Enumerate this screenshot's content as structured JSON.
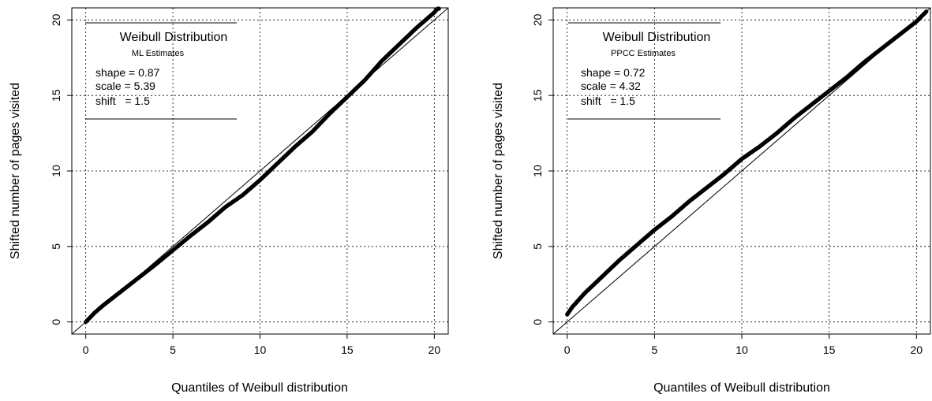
{
  "chart_data": [
    {
      "type": "scatter",
      "panel": "left",
      "xlabel": "Quantiles of Weibull distribution",
      "ylabel": "Shifted number of pages visited",
      "xlim": [
        -0.8,
        20.8
      ],
      "ylim": [
        -0.8,
        20.8
      ],
      "xticks": [
        0,
        5,
        10,
        15,
        20
      ],
      "yticks": [
        0,
        5,
        10,
        15,
        20
      ],
      "grid": true,
      "reference_line": "y = x",
      "legend_position": "top-left",
      "legend": {
        "title": "Weibull Distribution",
        "subtitle": "ML Estimates",
        "params": [
          {
            "name": "shape",
            "sep": " = ",
            "value": "0.87"
          },
          {
            "name": "scale",
            "sep": " = ",
            "value": "5.39"
          },
          {
            "name": "shift",
            "sep": "   = ",
            "value": "1.5"
          }
        ]
      },
      "series": [
        {
          "x": [
            0,
            0.5,
            1,
            2,
            3,
            4,
            5,
            6,
            7,
            8,
            9,
            10,
            11,
            12,
            13,
            14,
            15,
            16,
            17,
            18,
            19,
            20,
            20.3
          ],
          "y": [
            0,
            0.6,
            1.1,
            2.0,
            2.9,
            3.8,
            4.75,
            5.7,
            6.6,
            7.6,
            8.4,
            9.4,
            10.5,
            11.6,
            12.6,
            13.8,
            14.9,
            16.0,
            17.3,
            18.4,
            19.5,
            20.5,
            20.9
          ]
        }
      ]
    },
    {
      "type": "scatter",
      "panel": "right",
      "xlabel": "Quantiles of Weibull distribution",
      "ylabel": "Shifted number of pages visited",
      "xlim": [
        -0.8,
        20.8
      ],
      "ylim": [
        -0.8,
        20.8
      ],
      "xticks": [
        0,
        5,
        10,
        15,
        20
      ],
      "yticks": [
        0,
        5,
        10,
        15,
        20
      ],
      "grid": true,
      "reference_line": "y = x",
      "legend_position": "top-left",
      "legend": {
        "title": "Weibull Distribution",
        "subtitle": "PPCC Estimates",
        "params": [
          {
            "name": "shape",
            "sep": " = ",
            "value": "0.72"
          },
          {
            "name": "scale",
            "sep": " = ",
            "value": "4.32"
          },
          {
            "name": "shift",
            "sep": "   = ",
            "value": "1.5"
          }
        ]
      },
      "series": [
        {
          "x": [
            0,
            0.3,
            1,
            2,
            3,
            4,
            5,
            6,
            7,
            8,
            9,
            10,
            11,
            12,
            13,
            14,
            15,
            16,
            17,
            18,
            19,
            20,
            20.6
          ],
          "y": [
            0.5,
            1.0,
            1.9,
            3.0,
            4.1,
            5.1,
            6.1,
            7.0,
            8.0,
            8.9,
            9.8,
            10.8,
            11.6,
            12.5,
            13.5,
            14.4,
            15.3,
            16.2,
            17.2,
            18.1,
            19.0,
            19.9,
            20.6
          ]
        }
      ]
    }
  ]
}
